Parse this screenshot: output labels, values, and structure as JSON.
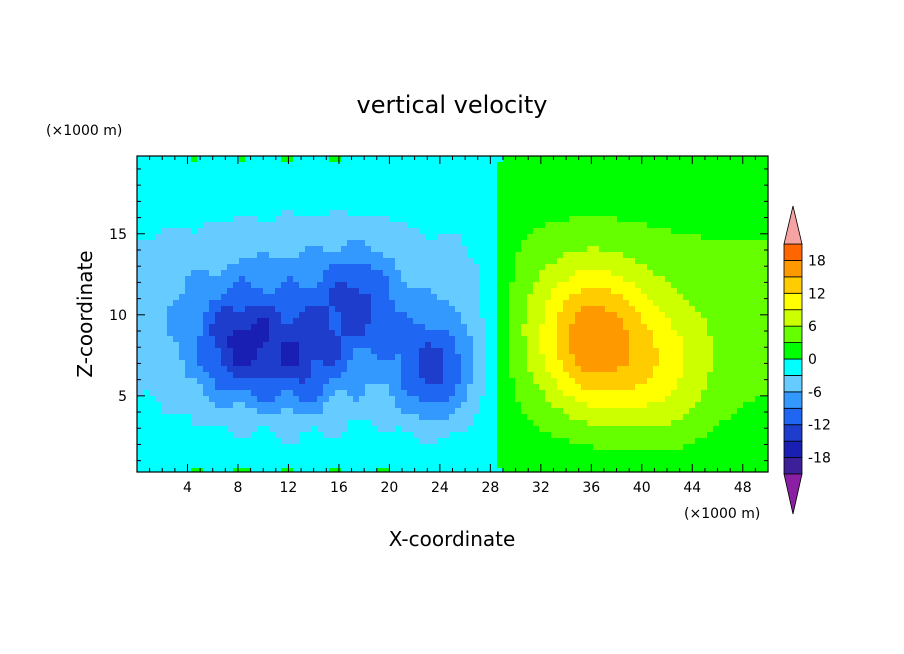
{
  "chart_data": {
    "type": "heatmap",
    "title": "vertical velocity",
    "xlabel": "X-coordinate",
    "ylabel": "Z-coordinate",
    "x_units": "(×1000 m)",
    "y_units": "(×1000 m)",
    "xlim": [
      0,
      50
    ],
    "ylim": [
      0.3,
      19.8
    ],
    "x_ticks": [
      4,
      8,
      12,
      16,
      20,
      24,
      28,
      32,
      36,
      40,
      44,
      48
    ],
    "y_ticks": [
      5,
      10,
      15
    ],
    "colorbar": {
      "levels": [
        -21,
        -18,
        -15,
        -12,
        -9,
        -6,
        -3,
        0,
        3,
        6,
        9,
        12,
        15,
        18,
        21
      ],
      "labels": [
        -18,
        -12,
        -6,
        0,
        6,
        12,
        18
      ],
      "colors": [
        "#8b1fa3",
        "#3d1f99",
        "#1a1fb3",
        "#1f3dcc",
        "#1f66f2",
        "#3399ff",
        "#66ccff",
        "#00ffff",
        "#00ff00",
        "#66ff00",
        "#ccff00",
        "#ffff00",
        "#ffcc00",
        "#ff9900",
        "#ff6600",
        "#ff2a00",
        "#f5a3a3"
      ],
      "under_color": "#8b1fa3",
      "over_color": "#f5a3a3"
    },
    "features": [
      {
        "kind": "updraft",
        "x": 36,
        "z": 8.5,
        "peak": 17
      },
      {
        "kind": "updraft",
        "x": 41.5,
        "z": 6.5,
        "peak": 10
      },
      {
        "kind": "downdraft",
        "x": 23.5,
        "z": 6.5,
        "peak": -13
      },
      {
        "kind": "downdraft",
        "x": 8,
        "z": 8,
        "peak": -12
      },
      {
        "kind": "downdraft",
        "x": 13,
        "z": 7,
        "peak": -10
      },
      {
        "kind": "downdraft",
        "x": 17.5,
        "z": 11,
        "peak": -10
      }
    ]
  }
}
